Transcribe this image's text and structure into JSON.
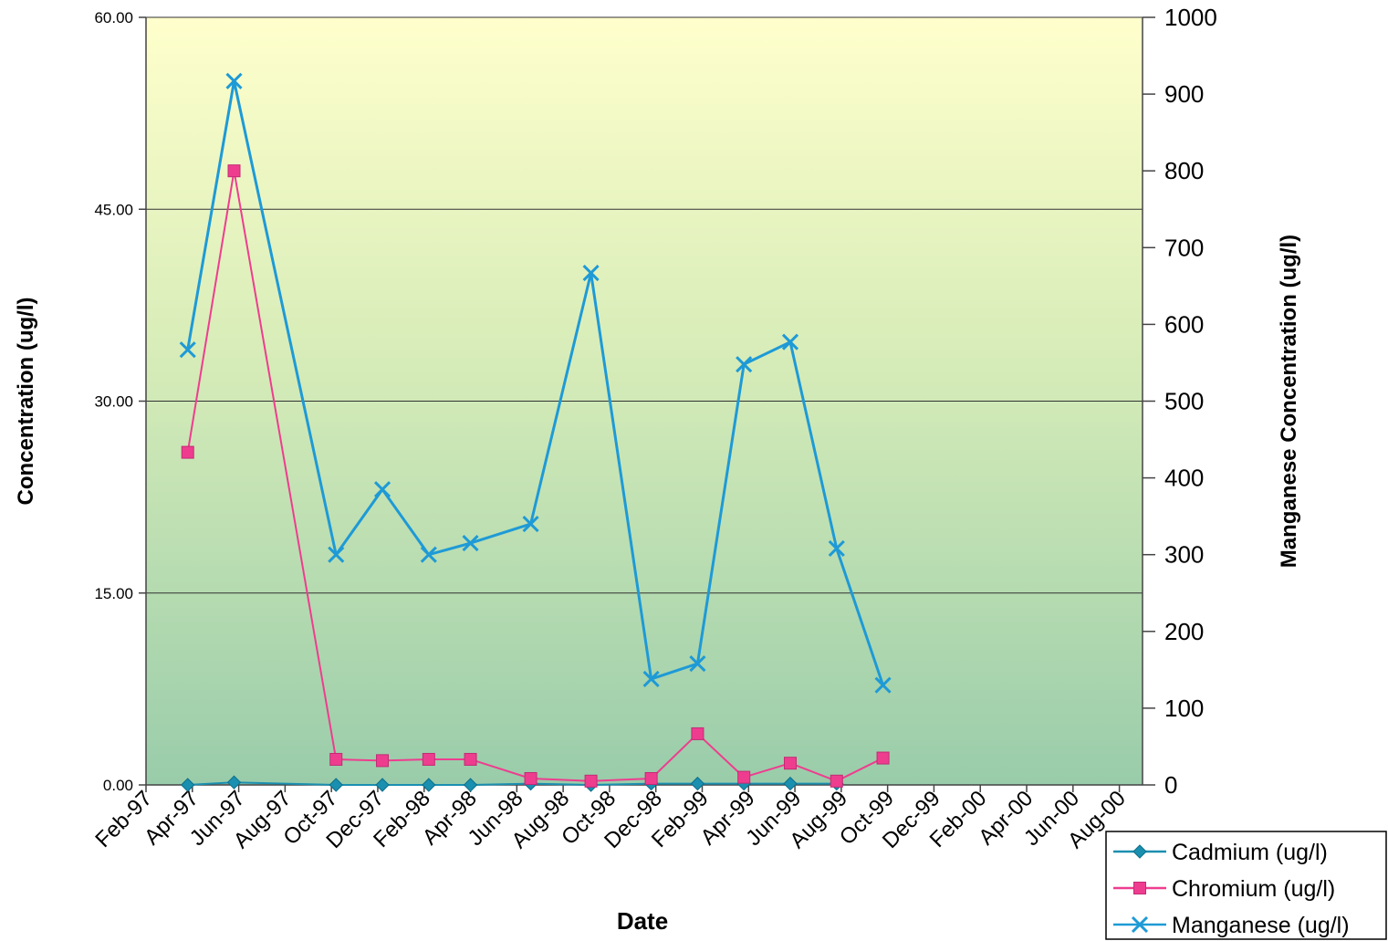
{
  "chart_data": {
    "type": "line",
    "x_categories": [
      "Feb-97",
      "Apr-97",
      "Jun-97",
      "Aug-97",
      "Oct-97",
      "Dec-97",
      "Feb-98",
      "Apr-98",
      "Jun-98",
      "Aug-98",
      "Oct-98",
      "Dec-98",
      "Feb-99",
      "Apr-99",
      "Jun-99",
      "Aug-99",
      "Oct-99",
      "Dec-99",
      "Feb-00",
      "Apr-00",
      "Jun-00",
      "Aug-00"
    ],
    "xlabel": "Date",
    "ylabel_left": "Concentration (ug/l)",
    "ylabel_right": "Manganese Concentration (ug/l)",
    "ylim_left": [
      0,
      60
    ],
    "ylim_right": [
      0,
      1000
    ],
    "yticks_left": [
      "0.00",
      "15.00",
      "30.00",
      "45.00",
      "60.00"
    ],
    "yticks_right": [
      "0",
      "100",
      "200",
      "300",
      "400",
      "500",
      "600",
      "700",
      "800",
      "900",
      "1000"
    ],
    "legend_position": "bottom-right",
    "grid": "horizontal at left-axis major ticks",
    "background_gradient": [
      "#ffffcc",
      "#99ccaa"
    ],
    "series": [
      {
        "name": "Cadmium (ug/l)",
        "axis": "left",
        "color": "#1a8fb0",
        "marker": "diamond",
        "points": [
          {
            "x": 0.9,
            "y": 0.0
          },
          {
            "x": 1.9,
            "y": 0.2
          },
          {
            "x": 4.1,
            "y": 0.0
          },
          {
            "x": 5.1,
            "y": 0.0
          },
          {
            "x": 6.1,
            "y": 0.0
          },
          {
            "x": 7.0,
            "y": 0.0
          },
          {
            "x": 8.3,
            "y": 0.1
          },
          {
            "x": 9.6,
            "y": 0.0
          },
          {
            "x": 10.9,
            "y": 0.1
          },
          {
            "x": 11.9,
            "y": 0.1
          },
          {
            "x": 12.9,
            "y": 0.1
          },
          {
            "x": 13.9,
            "y": 0.1
          },
          {
            "x": 14.9,
            "y": 0.1
          }
        ]
      },
      {
        "name": "Chromium (ug/l)",
        "axis": "left",
        "color": "#ee3d8f",
        "marker": "square",
        "points": [
          {
            "x": 0.9,
            "y": 26.0
          },
          {
            "x": 1.9,
            "y": 48.0
          },
          {
            "x": 4.1,
            "y": 2.0
          },
          {
            "x": 5.1,
            "y": 1.9
          },
          {
            "x": 6.1,
            "y": 2.0
          },
          {
            "x": 7.0,
            "y": 2.0
          },
          {
            "x": 8.3,
            "y": 0.5
          },
          {
            "x": 9.6,
            "y": 0.3
          },
          {
            "x": 10.9,
            "y": 0.5
          },
          {
            "x": 11.9,
            "y": 4.0
          },
          {
            "x": 12.9,
            "y": 0.6
          },
          {
            "x": 13.9,
            "y": 1.7
          },
          {
            "x": 14.9,
            "y": 0.3
          },
          {
            "x": 15.9,
            "y": 2.1
          }
        ]
      },
      {
        "name": "Manganese (ug/l)",
        "axis": "right",
        "color": "#1e9ad6",
        "marker": "x",
        "points": [
          {
            "x": 0.9,
            "y": 567
          },
          {
            "x": 1.9,
            "y": 917
          },
          {
            "x": 4.1,
            "y": 300
          },
          {
            "x": 5.1,
            "y": 385
          },
          {
            "x": 6.1,
            "y": 300
          },
          {
            "x": 7.0,
            "y": 315
          },
          {
            "x": 8.3,
            "y": 340
          },
          {
            "x": 9.6,
            "y": 667
          },
          {
            "x": 10.9,
            "y": 138
          },
          {
            "x": 11.9,
            "y": 158
          },
          {
            "x": 12.9,
            "y": 548
          },
          {
            "x": 13.9,
            "y": 577
          },
          {
            "x": 14.9,
            "y": 308
          },
          {
            "x": 15.9,
            "y": 130
          }
        ]
      }
    ]
  }
}
